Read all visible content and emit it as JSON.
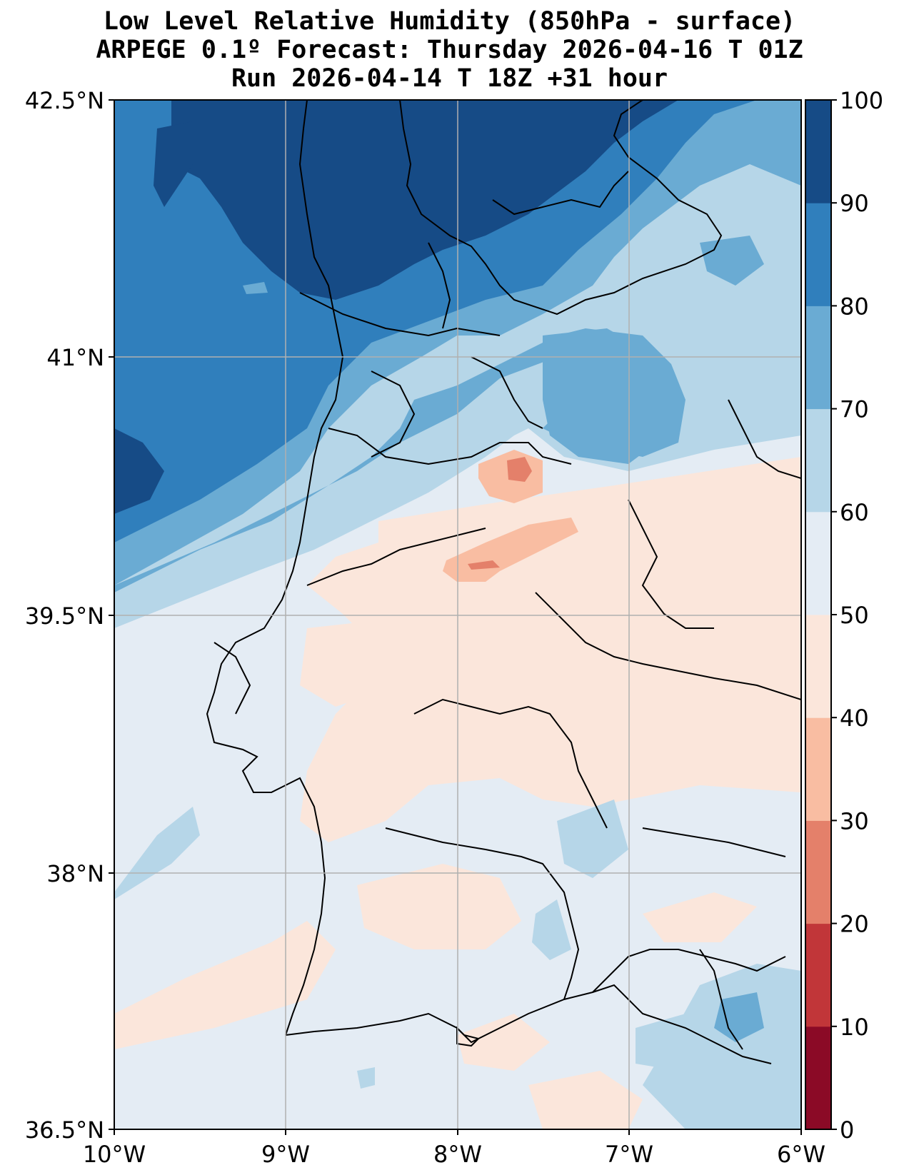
{
  "title": {
    "line1": "Low Level Relative Humidity (850hPa - surface)",
    "line2": "ARPEGE 0.1º Forecast: Thursday 2026-04-16 T 01Z",
    "line3": "Run 2026-04-14 T 18Z +31 hour"
  },
  "map": {
    "lon_range": [
      -10,
      -6
    ],
    "lat_range": [
      36.5,
      42.5
    ],
    "lat_ticks": [
      "42.5°N",
      "41°N",
      "39.5°N",
      "38°N",
      "36.5°N"
    ],
    "lon_ticks": [
      "10°W",
      "9°W",
      "8°W",
      "7°W",
      "6°W"
    ],
    "gridlines": true
  },
  "colorbar": {
    "levels": [
      "0",
      "10",
      "20",
      "30",
      "40",
      "50",
      "60",
      "70",
      "80",
      "90",
      "100"
    ],
    "colors": [
      "#8b0a26",
      "#c13639",
      "#e4806a",
      "#f9bda2",
      "#fbe6db",
      "#e4ecf4",
      "#b6d6e8",
      "#6aabd3",
      "#307fbc",
      "#164b86"
    ]
  }
}
